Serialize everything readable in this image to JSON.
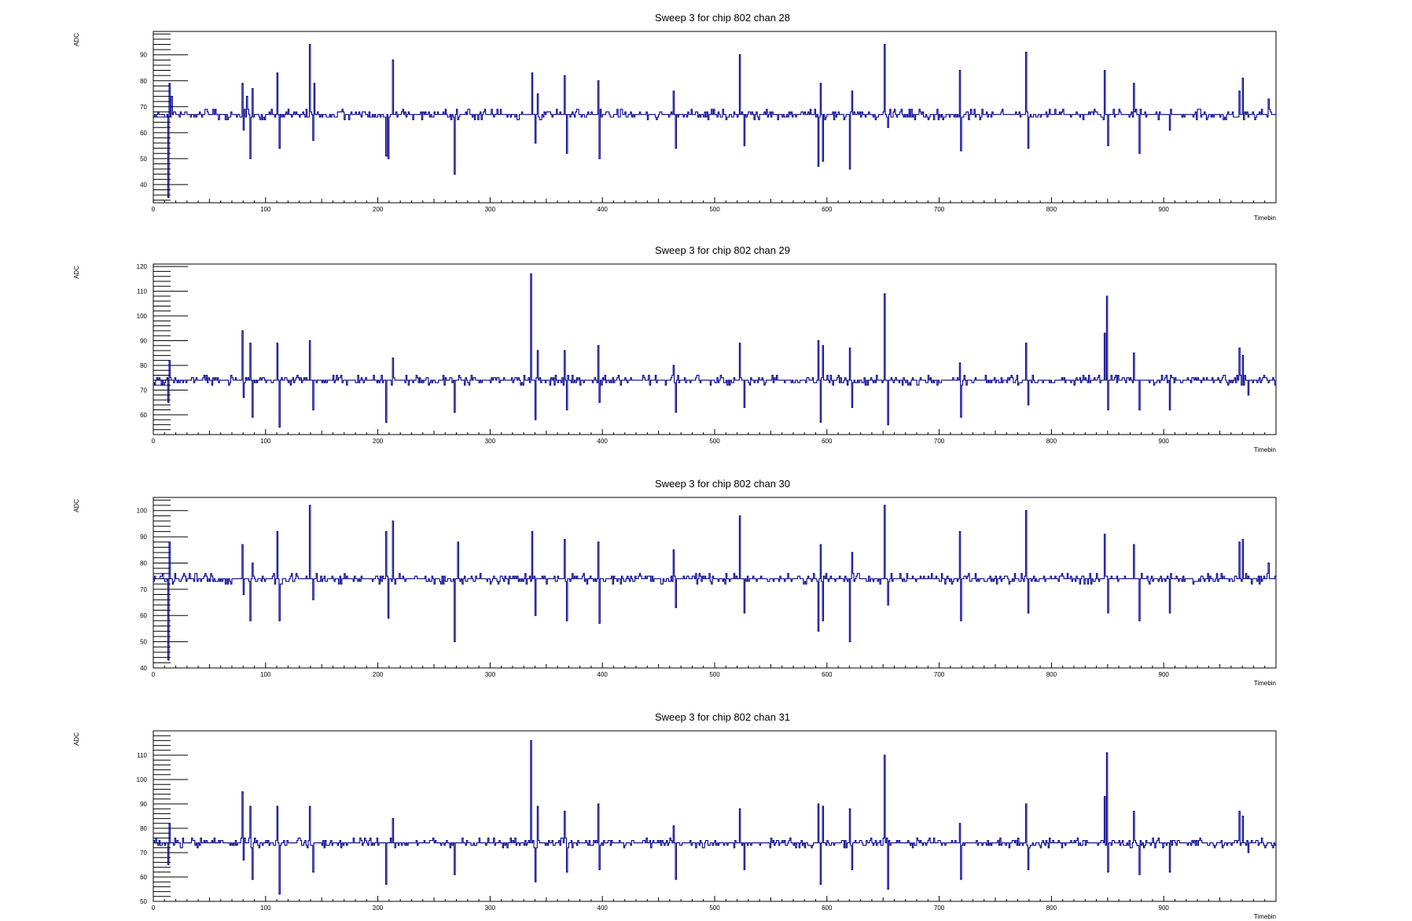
{
  "colors": {
    "trace": "#00008b",
    "frame": "#000000",
    "background": "#ffffff"
  },
  "chart_data": [
    {
      "type": "line",
      "title": "Sweep 3 for chip 802 chan 28",
      "xlabel": "Timebin",
      "ylabel": "ADC",
      "xlim": [
        0,
        1000
      ],
      "ylim": [
        33,
        99
      ],
      "xticks": [
        "0",
        "100",
        "200",
        "300",
        "400",
        "500",
        "600",
        "700",
        "800",
        "900"
      ],
      "yticks": [
        "40",
        "50",
        "60",
        "70",
        "80",
        "90"
      ],
      "baseline": 67,
      "series": [
        {
          "spikes": [
            [
              13,
              35
            ],
            [
              14,
              79
            ],
            [
              16,
              74
            ],
            [
              79,
              79
            ],
            [
              80,
              61
            ],
            [
              83,
              74
            ],
            [
              86,
              50
            ],
            [
              88,
              77
            ],
            [
              110,
              83
            ],
            [
              112,
              54
            ],
            [
              139,
              94
            ],
            [
              142,
              57
            ],
            [
              143,
              79
            ],
            [
              207,
              51
            ],
            [
              209,
              50
            ],
            [
              213,
              88
            ],
            [
              268,
              44
            ],
            [
              337,
              83
            ],
            [
              340,
              56
            ],
            [
              342,
              75
            ],
            [
              366,
              82
            ],
            [
              368,
              52
            ],
            [
              396,
              80
            ],
            [
              397,
              50
            ],
            [
              463,
              76
            ],
            [
              465,
              54
            ],
            [
              522,
              90
            ],
            [
              526,
              55
            ],
            [
              592,
              47
            ],
            [
              594,
              79
            ],
            [
              596,
              49
            ],
            [
              620,
              46
            ],
            [
              622,
              76
            ],
            [
              651,
              94
            ],
            [
              654,
              62
            ],
            [
              718,
              84
            ],
            [
              719,
              53
            ],
            [
              777,
              91
            ],
            [
              779,
              54
            ],
            [
              847,
              84
            ],
            [
              850,
              55
            ],
            [
              873,
              79
            ],
            [
              878,
              52
            ],
            [
              905,
              61
            ],
            [
              967,
              76
            ],
            [
              970,
              81
            ],
            [
              993,
              73
            ]
          ]
        }
      ]
    },
    {
      "type": "line",
      "title": "Sweep 3 for chip 802 chan 29",
      "xlabel": "Timebin",
      "ylabel": "ADC",
      "xlim": [
        0,
        1000
      ],
      "ylim": [
        52,
        121
      ],
      "xticks": [
        "0",
        "100",
        "200",
        "300",
        "400",
        "500",
        "600",
        "700",
        "800",
        "900"
      ],
      "yticks": [
        "60",
        "70",
        "80",
        "90",
        "100",
        "110",
        "120"
      ],
      "baseline": 74,
      "series": [
        {
          "spikes": [
            [
              13,
              65
            ],
            [
              14,
              82
            ],
            [
              79,
              94
            ],
            [
              80,
              67
            ],
            [
              86,
              89
            ],
            [
              88,
              59
            ],
            [
              110,
              89
            ],
            [
              112,
              55
            ],
            [
              139,
              90
            ],
            [
              142,
              62
            ],
            [
              207,
              57
            ],
            [
              213,
              83
            ],
            [
              268,
              61
            ],
            [
              336,
              117
            ],
            [
              340,
              58
            ],
            [
              342,
              86
            ],
            [
              366,
              86
            ],
            [
              368,
              62
            ],
            [
              396,
              88
            ],
            [
              397,
              65
            ],
            [
              463,
              80
            ],
            [
              465,
              61
            ],
            [
              522,
              89
            ],
            [
              526,
              63
            ],
            [
              592,
              90
            ],
            [
              594,
              57
            ],
            [
              596,
              88
            ],
            [
              620,
              87
            ],
            [
              622,
              63
            ],
            [
              651,
              109
            ],
            [
              654,
              56
            ],
            [
              718,
              81
            ],
            [
              719,
              59
            ],
            [
              777,
              89
            ],
            [
              779,
              64
            ],
            [
              847,
              93
            ],
            [
              849,
              108
            ],
            [
              850,
              62
            ],
            [
              873,
              85
            ],
            [
              878,
              62
            ],
            [
              905,
              62
            ],
            [
              967,
              87
            ],
            [
              970,
              84
            ],
            [
              975,
              68
            ]
          ]
        }
      ]
    },
    {
      "type": "line",
      "title": "Sweep 3 for chip 802 chan 30",
      "xlabel": "Timebin",
      "ylabel": "ADC",
      "xlim": [
        0,
        1000
      ],
      "ylim": [
        40,
        105
      ],
      "xticks": [
        "0",
        "100",
        "200",
        "300",
        "400",
        "500",
        "600",
        "700",
        "800",
        "900"
      ],
      "yticks": [
        "40",
        "50",
        "60",
        "70",
        "80",
        "90",
        "100"
      ],
      "baseline": 74,
      "series": [
        {
          "spikes": [
            [
              13,
              43
            ],
            [
              14,
              88
            ],
            [
              79,
              87
            ],
            [
              80,
              68
            ],
            [
              86,
              58
            ],
            [
              88,
              80
            ],
            [
              110,
              92
            ],
            [
              112,
              58
            ],
            [
              139,
              102
            ],
            [
              142,
              66
            ],
            [
              207,
              92
            ],
            [
              209,
              59
            ],
            [
              213,
              96
            ],
            [
              268,
              50
            ],
            [
              271,
              88
            ],
            [
              337,
              92
            ],
            [
              340,
              60
            ],
            [
              366,
              89
            ],
            [
              368,
              58
            ],
            [
              396,
              88
            ],
            [
              397,
              57
            ],
            [
              463,
              85
            ],
            [
              465,
              63
            ],
            [
              522,
              98
            ],
            [
              526,
              61
            ],
            [
              592,
              54
            ],
            [
              594,
              87
            ],
            [
              596,
              58
            ],
            [
              620,
              50
            ],
            [
              622,
              84
            ],
            [
              651,
              102
            ],
            [
              654,
              64
            ],
            [
              718,
              92
            ],
            [
              719,
              58
            ],
            [
              777,
              100
            ],
            [
              779,
              61
            ],
            [
              847,
              91
            ],
            [
              850,
              61
            ],
            [
              873,
              87
            ],
            [
              878,
              58
            ],
            [
              905,
              61
            ],
            [
              967,
              88
            ],
            [
              970,
              89
            ],
            [
              993,
              80
            ]
          ]
        }
      ]
    },
    {
      "type": "line",
      "title": "Sweep 3 for chip 802 chan 31",
      "xlabel": "Timebin",
      "ylabel": "ADC",
      "xlim": [
        0,
        1000
      ],
      "ylim": [
        50,
        120
      ],
      "xticks": [
        "0",
        "100",
        "200",
        "300",
        "400",
        "500",
        "600",
        "700",
        "800",
        "900"
      ],
      "yticks": [
        "50",
        "60",
        "70",
        "80",
        "90",
        "100",
        "110"
      ],
      "baseline": 74,
      "series": [
        {
          "spikes": [
            [
              13,
              65
            ],
            [
              14,
              82
            ],
            [
              79,
              95
            ],
            [
              80,
              67
            ],
            [
              86,
              89
            ],
            [
              88,
              59
            ],
            [
              110,
              89
            ],
            [
              112,
              53
            ],
            [
              139,
              89
            ],
            [
              142,
              62
            ],
            [
              207,
              57
            ],
            [
              213,
              84
            ],
            [
              268,
              61
            ],
            [
              336,
              116
            ],
            [
              340,
              58
            ],
            [
              342,
              89
            ],
            [
              366,
              87
            ],
            [
              368,
              62
            ],
            [
              396,
              90
            ],
            [
              397,
              63
            ],
            [
              463,
              81
            ],
            [
              465,
              59
            ],
            [
              522,
              88
            ],
            [
              526,
              63
            ],
            [
              592,
              90
            ],
            [
              594,
              57
            ],
            [
              596,
              89
            ],
            [
              620,
              88
            ],
            [
              622,
              63
            ],
            [
              651,
              110
            ],
            [
              654,
              55
            ],
            [
              718,
              82
            ],
            [
              719,
              59
            ],
            [
              777,
              90
            ],
            [
              779,
              63
            ],
            [
              847,
              93
            ],
            [
              849,
              111
            ],
            [
              850,
              62
            ],
            [
              873,
              87
            ],
            [
              878,
              61
            ],
            [
              905,
              62
            ],
            [
              967,
              87
            ],
            [
              970,
              85
            ],
            [
              975,
              70
            ]
          ]
        }
      ]
    }
  ]
}
